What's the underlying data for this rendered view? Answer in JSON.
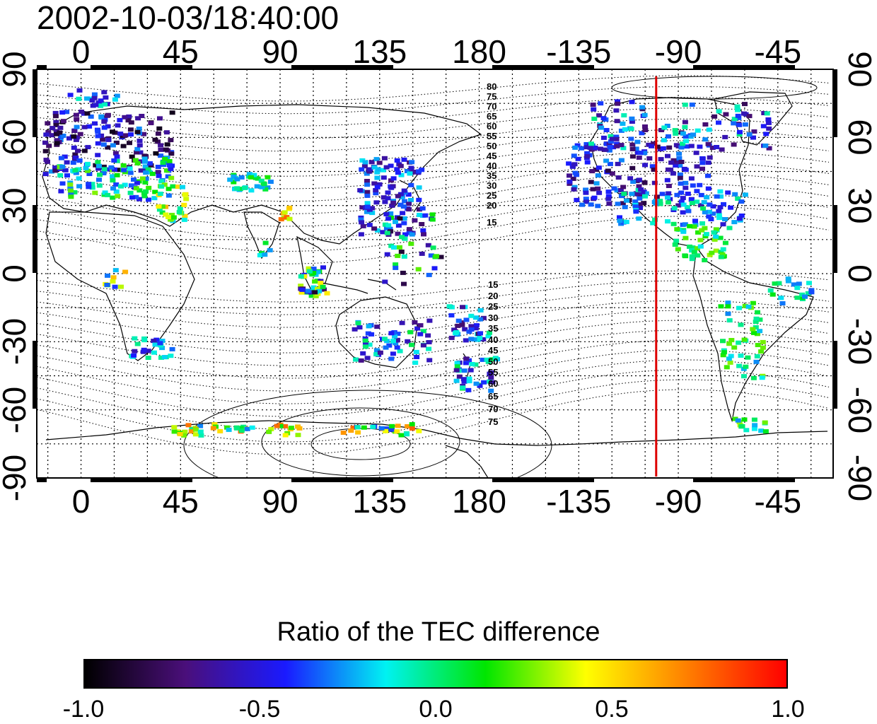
{
  "title": "2002-10-03/18:40:00",
  "map": {
    "x_ticks": [
      "0",
      "45",
      "90",
      "135",
      "180",
      "-135",
      "-90",
      "-45"
    ],
    "y_ticks_left": [
      "90",
      "60",
      "30",
      "0",
      "-30",
      "-60",
      "-90"
    ],
    "y_ticks_right": [
      "90",
      "60",
      "30",
      "0",
      "-30",
      "-60",
      "-90"
    ],
    "north_contour_labels": [
      "80",
      "75",
      "70",
      "65",
      "60",
      "55",
      "50",
      "45",
      "40",
      "35",
      "30",
      "25",
      "20",
      "15"
    ],
    "south_contour_labels": [
      "15",
      "20",
      "25",
      "30",
      "35",
      "40",
      "45",
      "50",
      "55",
      "60",
      "65",
      "70",
      "75"
    ],
    "marker_color": "#dd0000",
    "marker_longitude": -100
  },
  "colorbar": {
    "title": "Ratio of the TEC difference",
    "ticks": [
      "-1.0",
      "-0.5",
      "0.0",
      "0.5",
      "1.0"
    ],
    "range": [
      -1.0,
      1.0
    ],
    "colors": [
      "#000000",
      "#4a0f7a",
      "#1a1aff",
      "#00f2f2",
      "#00e600",
      "#ffff00",
      "#ff8000",
      "#ff0000"
    ]
  }
}
